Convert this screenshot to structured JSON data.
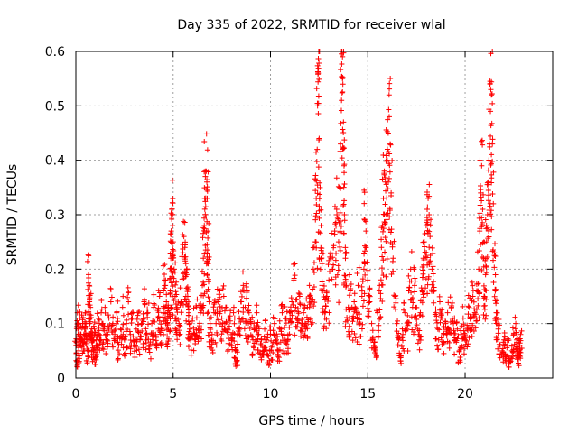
{
  "chart_data": {
    "type": "scatter",
    "title": "Day 335 of 2022, SRMTID for receiver wlal",
    "xlabel": "GPS time / hours",
    "ylabel": "SRMTID / TECUs",
    "xlim": [
      0,
      24.5
    ],
    "ylim": [
      0,
      0.6
    ],
    "xticks": [
      0,
      5,
      10,
      15,
      20
    ],
    "xtick_labels": [
      "0",
      "5",
      "10",
      "15",
      "20"
    ],
    "yticks": [
      0,
      0.1,
      0.2,
      0.3,
      0.4,
      0.5,
      0.6
    ],
    "ytick_labels": [
      "0",
      "0.1",
      "0.2",
      "0.3",
      "0.4",
      "0.5",
      "0.6"
    ],
    "grid": true,
    "marker": "+",
    "color": "#ff0000",
    "series": [
      {
        "name": "SRMTID",
        "points": [
          [
            0.0,
            0.06
          ],
          [
            0.05,
            0.03
          ],
          [
            0.08,
            0.12
          ],
          [
            0.12,
            0.09
          ],
          [
            0.16,
            0.05
          ],
          [
            0.2,
            0.11
          ],
          [
            0.25,
            0.08
          ],
          [
            0.3,
            0.07
          ],
          [
            0.35,
            0.1
          ],
          [
            0.4,
            0.06
          ],
          [
            0.45,
            0.09
          ],
          [
            0.5,
            0.12
          ],
          [
            0.55,
            0.07
          ],
          [
            0.6,
            0.05
          ],
          [
            0.65,
            0.19
          ],
          [
            0.68,
            0.17
          ],
          [
            0.7,
            0.14
          ],
          [
            0.72,
            0.1
          ],
          [
            0.75,
            0.13
          ],
          [
            0.8,
            0.08
          ],
          [
            0.85,
            0.06
          ],
          [
            0.9,
            0.05
          ],
          [
            0.95,
            0.09
          ],
          [
            1.0,
            0.04
          ],
          [
            1.05,
            0.07
          ],
          [
            1.1,
            0.06
          ],
          [
            1.15,
            0.1
          ],
          [
            1.2,
            0.08
          ],
          [
            1.3,
            0.12
          ],
          [
            1.4,
            0.09
          ],
          [
            1.5,
            0.13
          ],
          [
            1.6,
            0.07
          ],
          [
            1.7,
            0.11
          ],
          [
            1.8,
            0.14
          ],
          [
            1.9,
            0.1
          ],
          [
            2.0,
            0.08
          ],
          [
            2.1,
            0.12
          ],
          [
            2.2,
            0.06
          ],
          [
            2.3,
            0.09
          ],
          [
            2.4,
            0.13
          ],
          [
            2.5,
            0.07
          ],
          [
            2.6,
            0.1
          ],
          [
            2.7,
            0.14
          ],
          [
            2.8,
            0.08
          ],
          [
            2.9,
            0.11
          ],
          [
            3.0,
            0.06
          ],
          [
            3.1,
            0.09
          ],
          [
            3.2,
            0.12
          ],
          [
            3.3,
            0.07
          ],
          [
            3.4,
            0.1
          ],
          [
            3.5,
            0.14
          ],
          [
            3.6,
            0.08
          ],
          [
            3.7,
            0.12
          ],
          [
            3.8,
            0.06
          ],
          [
            3.9,
            0.1
          ],
          [
            4.0,
            0.13
          ],
          [
            4.1,
            0.08
          ],
          [
            4.2,
            0.11
          ],
          [
            4.3,
            0.15
          ],
          [
            4.4,
            0.09
          ],
          [
            4.5,
            0.12
          ],
          [
            4.55,
            0.18
          ],
          [
            4.6,
            0.17
          ],
          [
            4.65,
            0.14
          ],
          [
            4.7,
            0.1
          ],
          [
            4.75,
            0.13
          ],
          [
            4.8,
            0.12
          ],
          [
            4.85,
            0.16
          ],
          [
            4.88,
            0.22
          ],
          [
            4.9,
            0.27
          ],
          [
            4.93,
            0.31
          ],
          [
            4.95,
            0.3
          ],
          [
            4.97,
            0.28
          ],
          [
            5.0,
            0.25
          ],
          [
            5.05,
            0.2
          ],
          [
            5.1,
            0.15
          ],
          [
            5.15,
            0.11
          ],
          [
            5.2,
            0.13
          ],
          [
            5.3,
            0.1
          ],
          [
            5.4,
            0.14
          ],
          [
            5.5,
            0.23
          ],
          [
            5.55,
            0.26
          ],
          [
            5.6,
            0.24
          ],
          [
            5.65,
            0.21
          ],
          [
            5.7,
            0.19
          ],
          [
            5.75,
            0.15
          ],
          [
            5.8,
            0.12
          ],
          [
            5.85,
            0.09
          ],
          [
            5.9,
            0.07
          ],
          [
            6.0,
            0.11
          ],
          [
            6.1,
            0.08
          ],
          [
            6.2,
            0.13
          ],
          [
            6.3,
            0.09
          ],
          [
            6.4,
            0.12
          ],
          [
            6.5,
            0.17
          ],
          [
            6.55,
            0.22
          ],
          [
            6.6,
            0.28
          ],
          [
            6.62,
            0.33
          ],
          [
            6.65,
            0.38
          ],
          [
            6.7,
            0.38
          ],
          [
            6.73,
            0.36
          ],
          [
            6.75,
            0.33
          ],
          [
            6.78,
            0.27
          ],
          [
            6.8,
            0.21
          ],
          [
            6.85,
            0.14
          ],
          [
            6.9,
            0.1
          ],
          [
            7.0,
            0.08
          ],
          [
            7.1,
            0.12
          ],
          [
            7.2,
            0.1
          ],
          [
            7.3,
            0.14
          ],
          [
            7.4,
            0.16
          ],
          [
            7.5,
            0.11
          ],
          [
            7.6,
            0.15
          ],
          [
            7.7,
            0.13
          ],
          [
            7.8,
            0.09
          ],
          [
            7.9,
            0.11
          ],
          [
            8.0,
            0.07
          ],
          [
            8.1,
            0.12
          ],
          [
            8.2,
            0.05
          ],
          [
            8.25,
            0.03
          ],
          [
            8.3,
            0.08
          ],
          [
            8.4,
            0.11
          ],
          [
            8.5,
            0.14
          ],
          [
            8.6,
            0.17
          ],
          [
            8.7,
            0.13
          ],
          [
            8.8,
            0.16
          ],
          [
            8.9,
            0.12
          ],
          [
            9.0,
            0.1
          ],
          [
            9.1,
            0.07
          ],
          [
            9.2,
            0.09
          ],
          [
            9.3,
            0.12
          ],
          [
            9.4,
            0.08
          ],
          [
            9.5,
            0.06
          ],
          [
            9.6,
            0.05
          ],
          [
            9.7,
            0.09
          ],
          [
            9.8,
            0.07
          ],
          [
            9.9,
            0.04
          ],
          [
            10.0,
            0.08
          ],
          [
            10.1,
            0.06
          ],
          [
            10.2,
            0.1
          ],
          [
            10.3,
            0.07
          ],
          [
            10.4,
            0.05
          ],
          [
            10.5,
            0.09
          ],
          [
            10.6,
            0.12
          ],
          [
            10.7,
            0.08
          ],
          [
            10.8,
            0.11
          ],
          [
            10.9,
            0.07
          ],
          [
            11.0,
            0.12
          ],
          [
            11.1,
            0.14
          ],
          [
            11.2,
            0.18
          ],
          [
            11.3,
            0.13
          ],
          [
            11.4,
            0.11
          ],
          [
            11.5,
            0.15
          ],
          [
            11.6,
            0.1
          ],
          [
            11.7,
            0.12
          ],
          [
            11.8,
            0.09
          ],
          [
            11.9,
            0.13
          ],
          [
            12.0,
            0.17
          ],
          [
            12.1,
            0.14
          ],
          [
            12.2,
            0.2
          ],
          [
            12.3,
            0.25
          ],
          [
            12.35,
            0.33
          ],
          [
            12.4,
            0.42
          ],
          [
            12.42,
            0.5
          ],
          [
            12.45,
            0.56
          ],
          [
            12.48,
            0.6
          ],
          [
            12.5,
            0.44
          ],
          [
            12.55,
            0.35
          ],
          [
            12.6,
            0.28
          ],
          [
            12.65,
            0.21
          ],
          [
            12.7,
            0.16
          ],
          [
            12.8,
            0.12
          ],
          [
            12.9,
            0.15
          ],
          [
            13.0,
            0.18
          ],
          [
            13.1,
            0.23
          ],
          [
            13.2,
            0.2
          ],
          [
            13.3,
            0.27
          ],
          [
            13.4,
            0.31
          ],
          [
            13.5,
            0.25
          ],
          [
            13.55,
            0.35
          ],
          [
            13.6,
            0.43
          ],
          [
            13.65,
            0.51
          ],
          [
            13.7,
            0.55
          ],
          [
            13.72,
            0.54
          ],
          [
            13.75,
            0.47
          ],
          [
            13.78,
            0.39
          ],
          [
            13.8,
            0.3
          ],
          [
            13.85,
            0.22
          ],
          [
            13.9,
            0.17
          ],
          [
            14.0,
            0.13
          ],
          [
            14.1,
            0.16
          ],
          [
            14.2,
            0.11
          ],
          [
            14.3,
            0.14
          ],
          [
            14.4,
            0.12
          ],
          [
            14.5,
            0.17
          ],
          [
            14.6,
            0.1
          ],
          [
            14.7,
            0.15
          ],
          [
            14.8,
            0.2
          ],
          [
            14.85,
            0.29
          ],
          [
            14.9,
            0.24
          ],
          [
            15.0,
            0.18
          ],
          [
            15.1,
            0.14
          ],
          [
            15.2,
            0.1
          ],
          [
            15.3,
            0.06
          ],
          [
            15.4,
            0.05
          ],
          [
            15.5,
            0.12
          ],
          [
            15.6,
            0.17
          ],
          [
            15.7,
            0.24
          ],
          [
            15.75,
            0.28
          ],
          [
            15.8,
            0.33
          ],
          [
            15.85,
            0.38
          ],
          [
            15.9,
            0.36
          ],
          [
            15.95,
            0.3
          ],
          [
            16.0,
            0.4
          ],
          [
            16.05,
            0.45
          ],
          [
            16.1,
            0.48
          ],
          [
            16.15,
            0.43
          ],
          [
            16.2,
            0.34
          ],
          [
            16.3,
            0.22
          ],
          [
            16.4,
            0.15
          ],
          [
            16.5,
            0.1
          ],
          [
            16.6,
            0.07
          ],
          [
            16.7,
            0.04
          ],
          [
            16.8,
            0.08
          ],
          [
            16.9,
            0.12
          ],
          [
            17.0,
            0.09
          ],
          [
            17.1,
            0.16
          ],
          [
            17.2,
            0.2
          ],
          [
            17.3,
            0.13
          ],
          [
            17.4,
            0.17
          ],
          [
            17.5,
            0.11
          ],
          [
            17.6,
            0.08
          ],
          [
            17.7,
            0.12
          ],
          [
            17.8,
            0.16
          ],
          [
            17.85,
            0.22
          ],
          [
            17.9,
            0.25
          ],
          [
            18.0,
            0.28
          ],
          [
            18.05,
            0.31
          ],
          [
            18.1,
            0.33
          ],
          [
            18.15,
            0.3
          ],
          [
            18.2,
            0.26
          ],
          [
            18.3,
            0.2
          ],
          [
            18.4,
            0.16
          ],
          [
            18.5,
            0.12
          ],
          [
            18.6,
            0.09
          ],
          [
            18.7,
            0.14
          ],
          [
            18.8,
            0.11
          ],
          [
            18.9,
            0.08
          ],
          [
            19.0,
            0.1
          ],
          [
            19.1,
            0.12
          ],
          [
            19.2,
            0.09
          ],
          [
            19.3,
            0.13
          ],
          [
            19.4,
            0.1
          ],
          [
            19.5,
            0.07
          ],
          [
            19.6,
            0.09
          ],
          [
            19.7,
            0.05
          ],
          [
            19.8,
            0.08
          ],
          [
            19.9,
            0.11
          ],
          [
            20.0,
            0.07
          ],
          [
            20.1,
            0.09
          ],
          [
            20.2,
            0.13
          ],
          [
            20.3,
            0.1
          ],
          [
            20.4,
            0.15
          ],
          [
            20.5,
            0.12
          ],
          [
            20.6,
            0.16
          ],
          [
            20.7,
            0.2
          ],
          [
            20.75,
            0.27
          ],
          [
            20.8,
            0.34
          ],
          [
            20.85,
            0.39
          ],
          [
            20.9,
            0.31
          ],
          [
            20.95,
            0.22
          ],
          [
            21.0,
            0.15
          ],
          [
            21.05,
            0.19
          ],
          [
            21.1,
            0.25
          ],
          [
            21.15,
            0.3
          ],
          [
            21.2,
            0.36
          ],
          [
            21.25,
            0.43
          ],
          [
            21.3,
            0.49
          ],
          [
            21.32,
            0.53
          ],
          [
            21.35,
            0.52
          ],
          [
            21.4,
            0.43
          ],
          [
            21.45,
            0.32
          ],
          [
            21.5,
            0.23
          ],
          [
            21.55,
            0.16
          ],
          [
            21.6,
            0.12
          ],
          [
            21.7,
            0.09
          ],
          [
            21.8,
            0.06
          ],
          [
            21.9,
            0.05
          ],
          [
            22.0,
            0.07
          ],
          [
            22.1,
            0.04
          ],
          [
            22.2,
            0.06
          ],
          [
            22.3,
            0.03
          ],
          [
            22.4,
            0.05
          ],
          [
            22.5,
            0.08
          ],
          [
            22.6,
            0.1
          ],
          [
            22.65,
            0.07
          ],
          [
            22.7,
            0.05
          ],
          [
            22.75,
            0.04
          ],
          [
            22.8,
            0.06
          ],
          [
            22.85,
            0.08
          ]
        ]
      }
    ]
  }
}
